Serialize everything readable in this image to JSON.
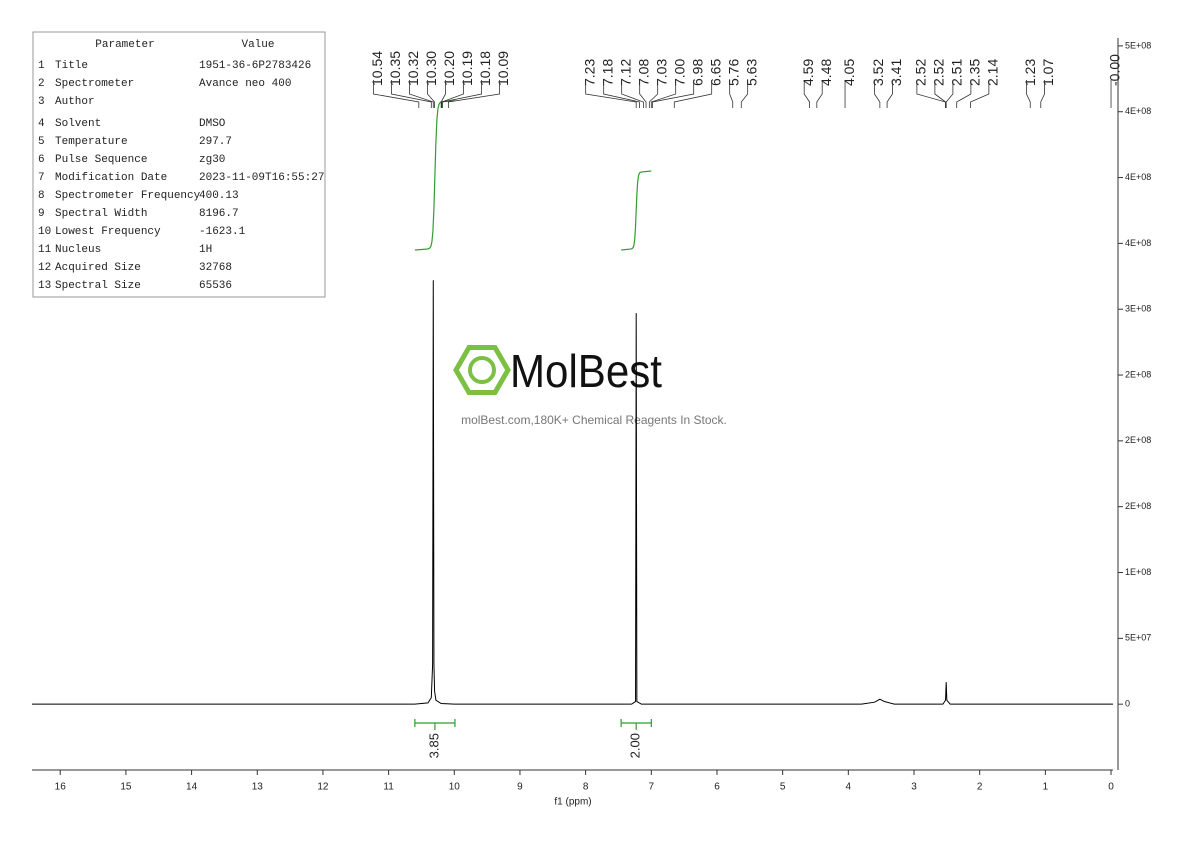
{
  "parameter_table": {
    "header": [
      "Parameter",
      "Value"
    ],
    "rows": [
      [
        "1",
        "Title",
        "1951-36-6P2783426"
      ],
      [
        "2",
        "Spectrometer",
        "Avance neo 400"
      ],
      [
        "3",
        "Author"
      ],
      [
        "4",
        "Solvent",
        "DMSO"
      ],
      [
        "5",
        "Temperature",
        "297.7"
      ],
      [
        "6",
        "Pulse Sequence",
        "zg30"
      ],
      [
        "7",
        "Modification Date",
        "2023-11-09T16:55:27"
      ],
      [
        "8",
        "Spectrometer Frequency",
        "400.13"
      ],
      [
        "9",
        "Spectral Width",
        "8196.7"
      ],
      [
        "10",
        "Lowest Frequency",
        "-1623.1"
      ],
      [
        "11",
        "Nucleus",
        "1H"
      ],
      [
        "12",
        "Acquired Size",
        "32768"
      ],
      [
        "13",
        "Spectral Size",
        "65536"
      ]
    ]
  },
  "watermark": {
    "title": "MolBest",
    "subtitle": "molBest.com,180K+ Chemical Reagents In Stock."
  },
  "chart_data": {
    "type": "line",
    "xlabel": "f1 (ppm)",
    "color": "#000000",
    "x": [
      16.43,
      10.6,
      10.4,
      10.35,
      10.33,
      10.32,
      10.31,
      10.3,
      10.28,
      10.2,
      10.0,
      7.3,
      7.24,
      7.23,
      7.22,
      7.15,
      3.8,
      3.6,
      3.52,
      3.45,
      3.3,
      2.56,
      2.52,
      2.51,
      2.5,
      2.45,
      -0.03
    ],
    "values": [
      0,
      0,
      1000000,
      5000000,
      30000000,
      322000000,
      30000000,
      10000000,
      3000000,
      500000,
      0,
      0,
      2000000,
      297000000,
      2000000,
      0,
      0,
      1500000,
      3800000,
      2000000,
      0,
      0,
      3000000,
      16700000,
      3000000,
      0,
      0
    ],
    "xlim": [
      16.43,
      -0.03
    ],
    "xticks": [
      16,
      15,
      14,
      13,
      12,
      11,
      10,
      9,
      8,
      7,
      6,
      5,
      4,
      3,
      2,
      1,
      0
    ],
    "ylim": [
      -50000000,
      506000000
    ],
    "yticks": [
      0,
      {
        "value": 50000000,
        "label": "5E+07"
      },
      {
        "value": 100000000,
        "label": "1E+08"
      },
      {
        "value": 150000000,
        "label": "2E+08"
      },
      {
        "value": 200000000,
        "label": "2E+08"
      },
      {
        "value": 250000000,
        "label": "2E+08"
      },
      {
        "value": 300000000,
        "label": "3E+08"
      },
      {
        "value": 350000000,
        "label": "4E+08"
      },
      {
        "value": 400000000,
        "label": "4E+08"
      },
      {
        "value": 450000000,
        "label": "4E+08"
      },
      {
        "value": 500000000,
        "label": "5E+08"
      }
    ],
    "peak_labels": [
      {
        "value": 10.54,
        "label": "10.54"
      },
      {
        "value": 10.35,
        "label": "10.35"
      },
      {
        "value": 10.32,
        "label": "10.32"
      },
      {
        "value": 10.3,
        "label": "10.30"
      },
      {
        "value": 10.2,
        "label": "10.20"
      },
      {
        "value": 10.19,
        "label": "10.19"
      },
      {
        "value": 10.18,
        "label": "10.18"
      },
      {
        "value": 10.09,
        "label": "10.09"
      },
      {
        "value": 7.23,
        "label": "7.23"
      },
      {
        "value": 7.18,
        "label": "7.18"
      },
      {
        "value": 7.12,
        "label": "7.12"
      },
      {
        "value": 7.08,
        "label": "7.08"
      },
      {
        "value": 7.03,
        "label": "7.03"
      },
      {
        "value": 7.0,
        "label": "7.00"
      },
      {
        "value": 6.98,
        "label": "6.98"
      },
      {
        "value": 6.65,
        "label": "6.65"
      },
      {
        "value": 5.76,
        "label": "5.76"
      },
      {
        "value": 5.63,
        "label": "5.63"
      },
      {
        "value": 4.59,
        "label": "4.59"
      },
      {
        "value": 4.48,
        "label": "4.48"
      },
      {
        "value": 4.05,
        "label": "4.05"
      },
      {
        "value": 3.52,
        "label": "3.52"
      },
      {
        "value": 3.41,
        "label": "3.41"
      },
      {
        "value": 2.52,
        "label": "2.52"
      },
      {
        "value": 2.52,
        "label": "2.52"
      },
      {
        "value": 2.51,
        "label": "2.51"
      },
      {
        "value": 2.35,
        "label": "2.35"
      },
      {
        "value": 2.14,
        "label": "2.14"
      },
      {
        "value": 1.23,
        "label": "1.23"
      },
      {
        "value": 1.07,
        "label": "1.07"
      },
      {
        "value": 0,
        "label": "-0.00"
      }
    ],
    "integrals": [
      {
        "from": 10.6,
        "to": 9.99,
        "value": 3.85,
        "label": "3.85"
      },
      {
        "from": 7.46,
        "to": 7.0,
        "value": 2,
        "label": "2.00"
      }
    ],
    "integral_color": "#2e9e2e"
  }
}
